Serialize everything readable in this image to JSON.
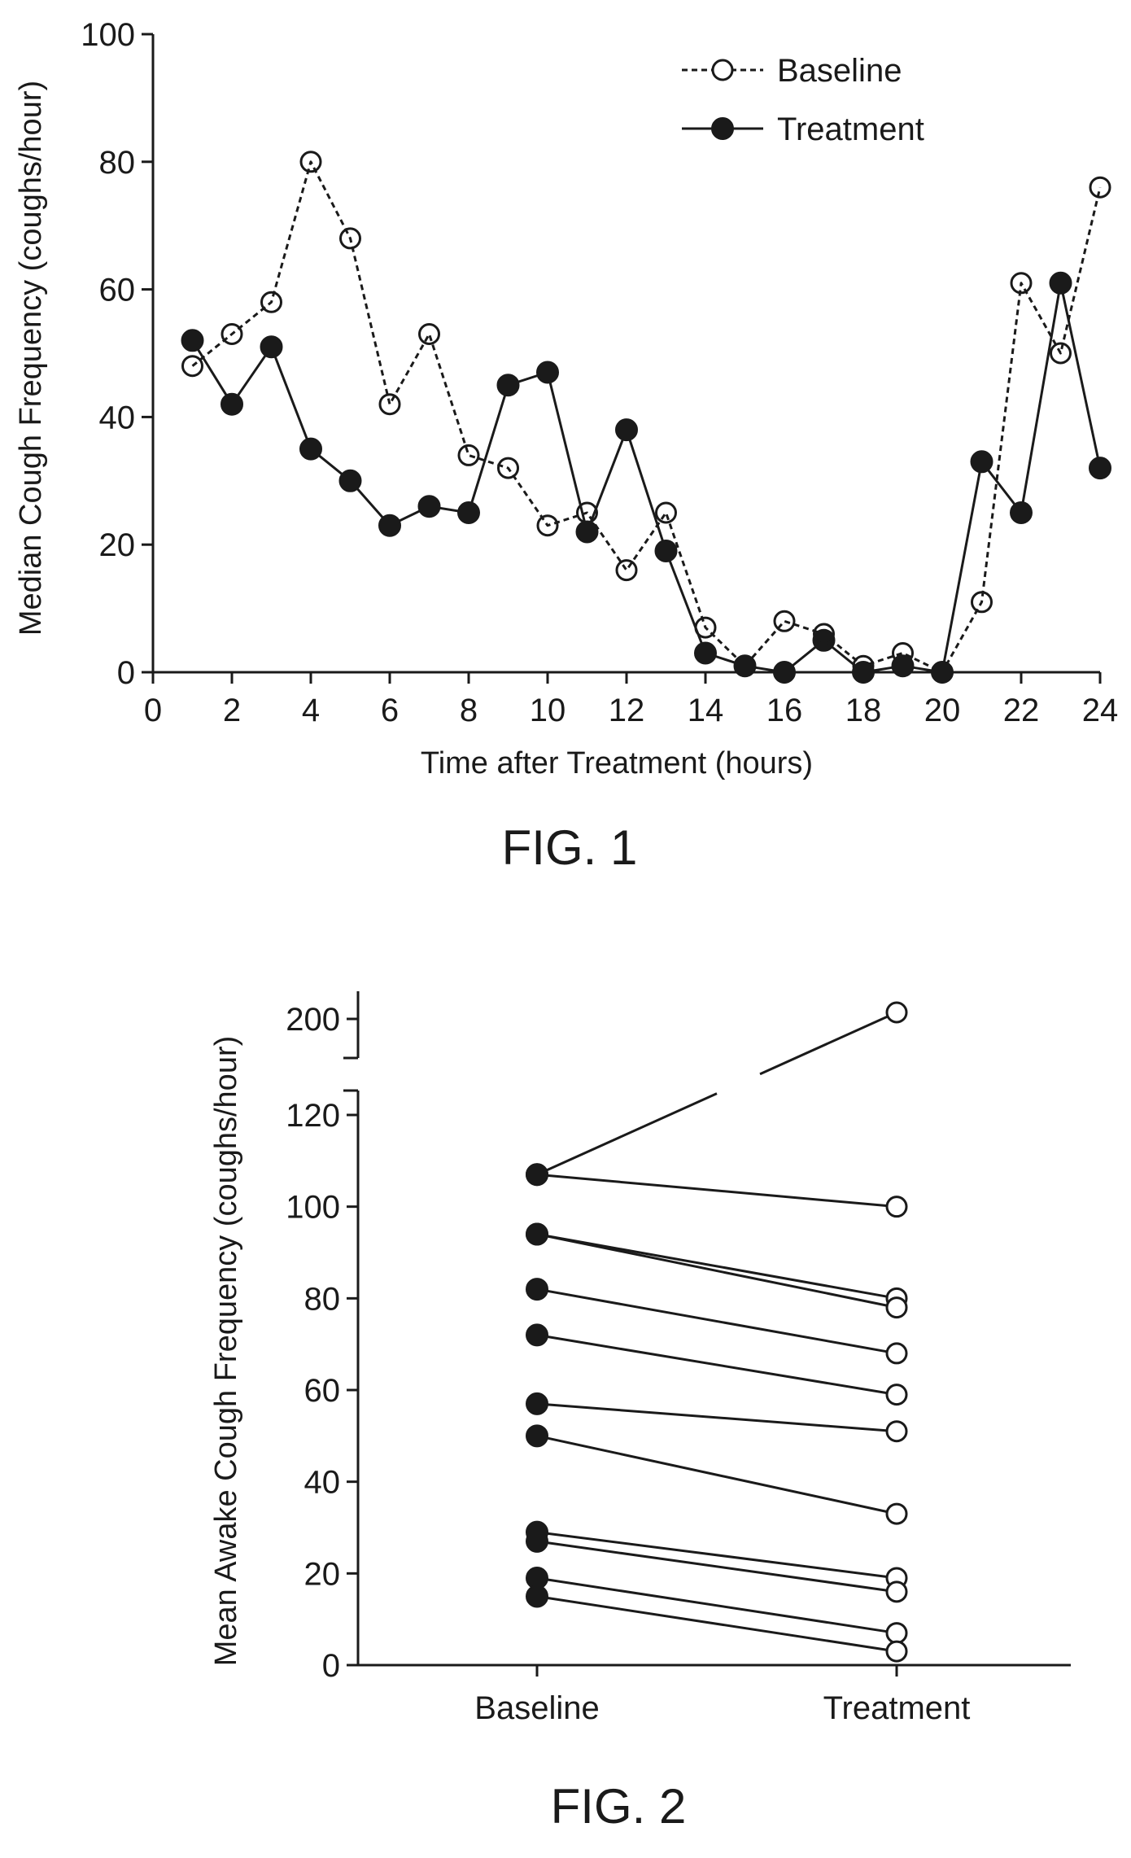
{
  "chart_data": [
    {
      "type": "line",
      "caption": "FIG. 1",
      "xlabel": "Time after Treatment (hours)",
      "ylabel": "Median Cough Frequency (coughs/hour)",
      "xlim": [
        0,
        24
      ],
      "ylim": [
        0,
        100
      ],
      "xticks": [
        0,
        2,
        4,
        6,
        8,
        10,
        12,
        14,
        16,
        18,
        20,
        22,
        24
      ],
      "yticks": [
        0,
        20,
        40,
        60,
        80,
        100
      ],
      "legend": "top-right",
      "x": [
        1,
        2,
        3,
        4,
        5,
        6,
        7,
        8,
        9,
        10,
        11,
        12,
        13,
        14,
        15,
        16,
        17,
        18,
        19,
        20,
        21,
        22,
        23,
        24
      ],
      "series": [
        {
          "name": "Baseline",
          "style": "dashed-open",
          "values": [
            48,
            53,
            58,
            80,
            68,
            42,
            53,
            34,
            32,
            23,
            25,
            16,
            25,
            7,
            1,
            8,
            6,
            1,
            3,
            0,
            11,
            61,
            50,
            76
          ]
        },
        {
          "name": "Treatment",
          "style": "solid-filled",
          "values": [
            52,
            42,
            51,
            35,
            30,
            23,
            26,
            25,
            45,
            47,
            22,
            38,
            19,
            3,
            1,
            0,
            5,
            0,
            1,
            0,
            33,
            25,
            61,
            32
          ]
        }
      ]
    },
    {
      "type": "paired-scatter",
      "caption": "FIG. 2",
      "xlabel": "",
      "ylabel": "Mean Awake Cough Frequency (coughs/hour)",
      "categories": [
        "Baseline",
        "Treatment"
      ],
      "ylim": [
        0,
        120
      ],
      "yticks": [
        0,
        20,
        40,
        60,
        80,
        100,
        120
      ],
      "broken_axis_tick": 200,
      "pairs": [
        [
          107,
          204
        ],
        [
          107,
          100
        ],
        [
          94,
          80
        ],
        [
          94,
          78
        ],
        [
          82,
          68
        ],
        [
          72,
          59
        ],
        [
          57,
          51
        ],
        [
          50,
          33
        ],
        [
          29,
          19
        ],
        [
          27,
          16
        ],
        [
          19,
          7
        ],
        [
          15,
          3
        ]
      ]
    }
  ]
}
